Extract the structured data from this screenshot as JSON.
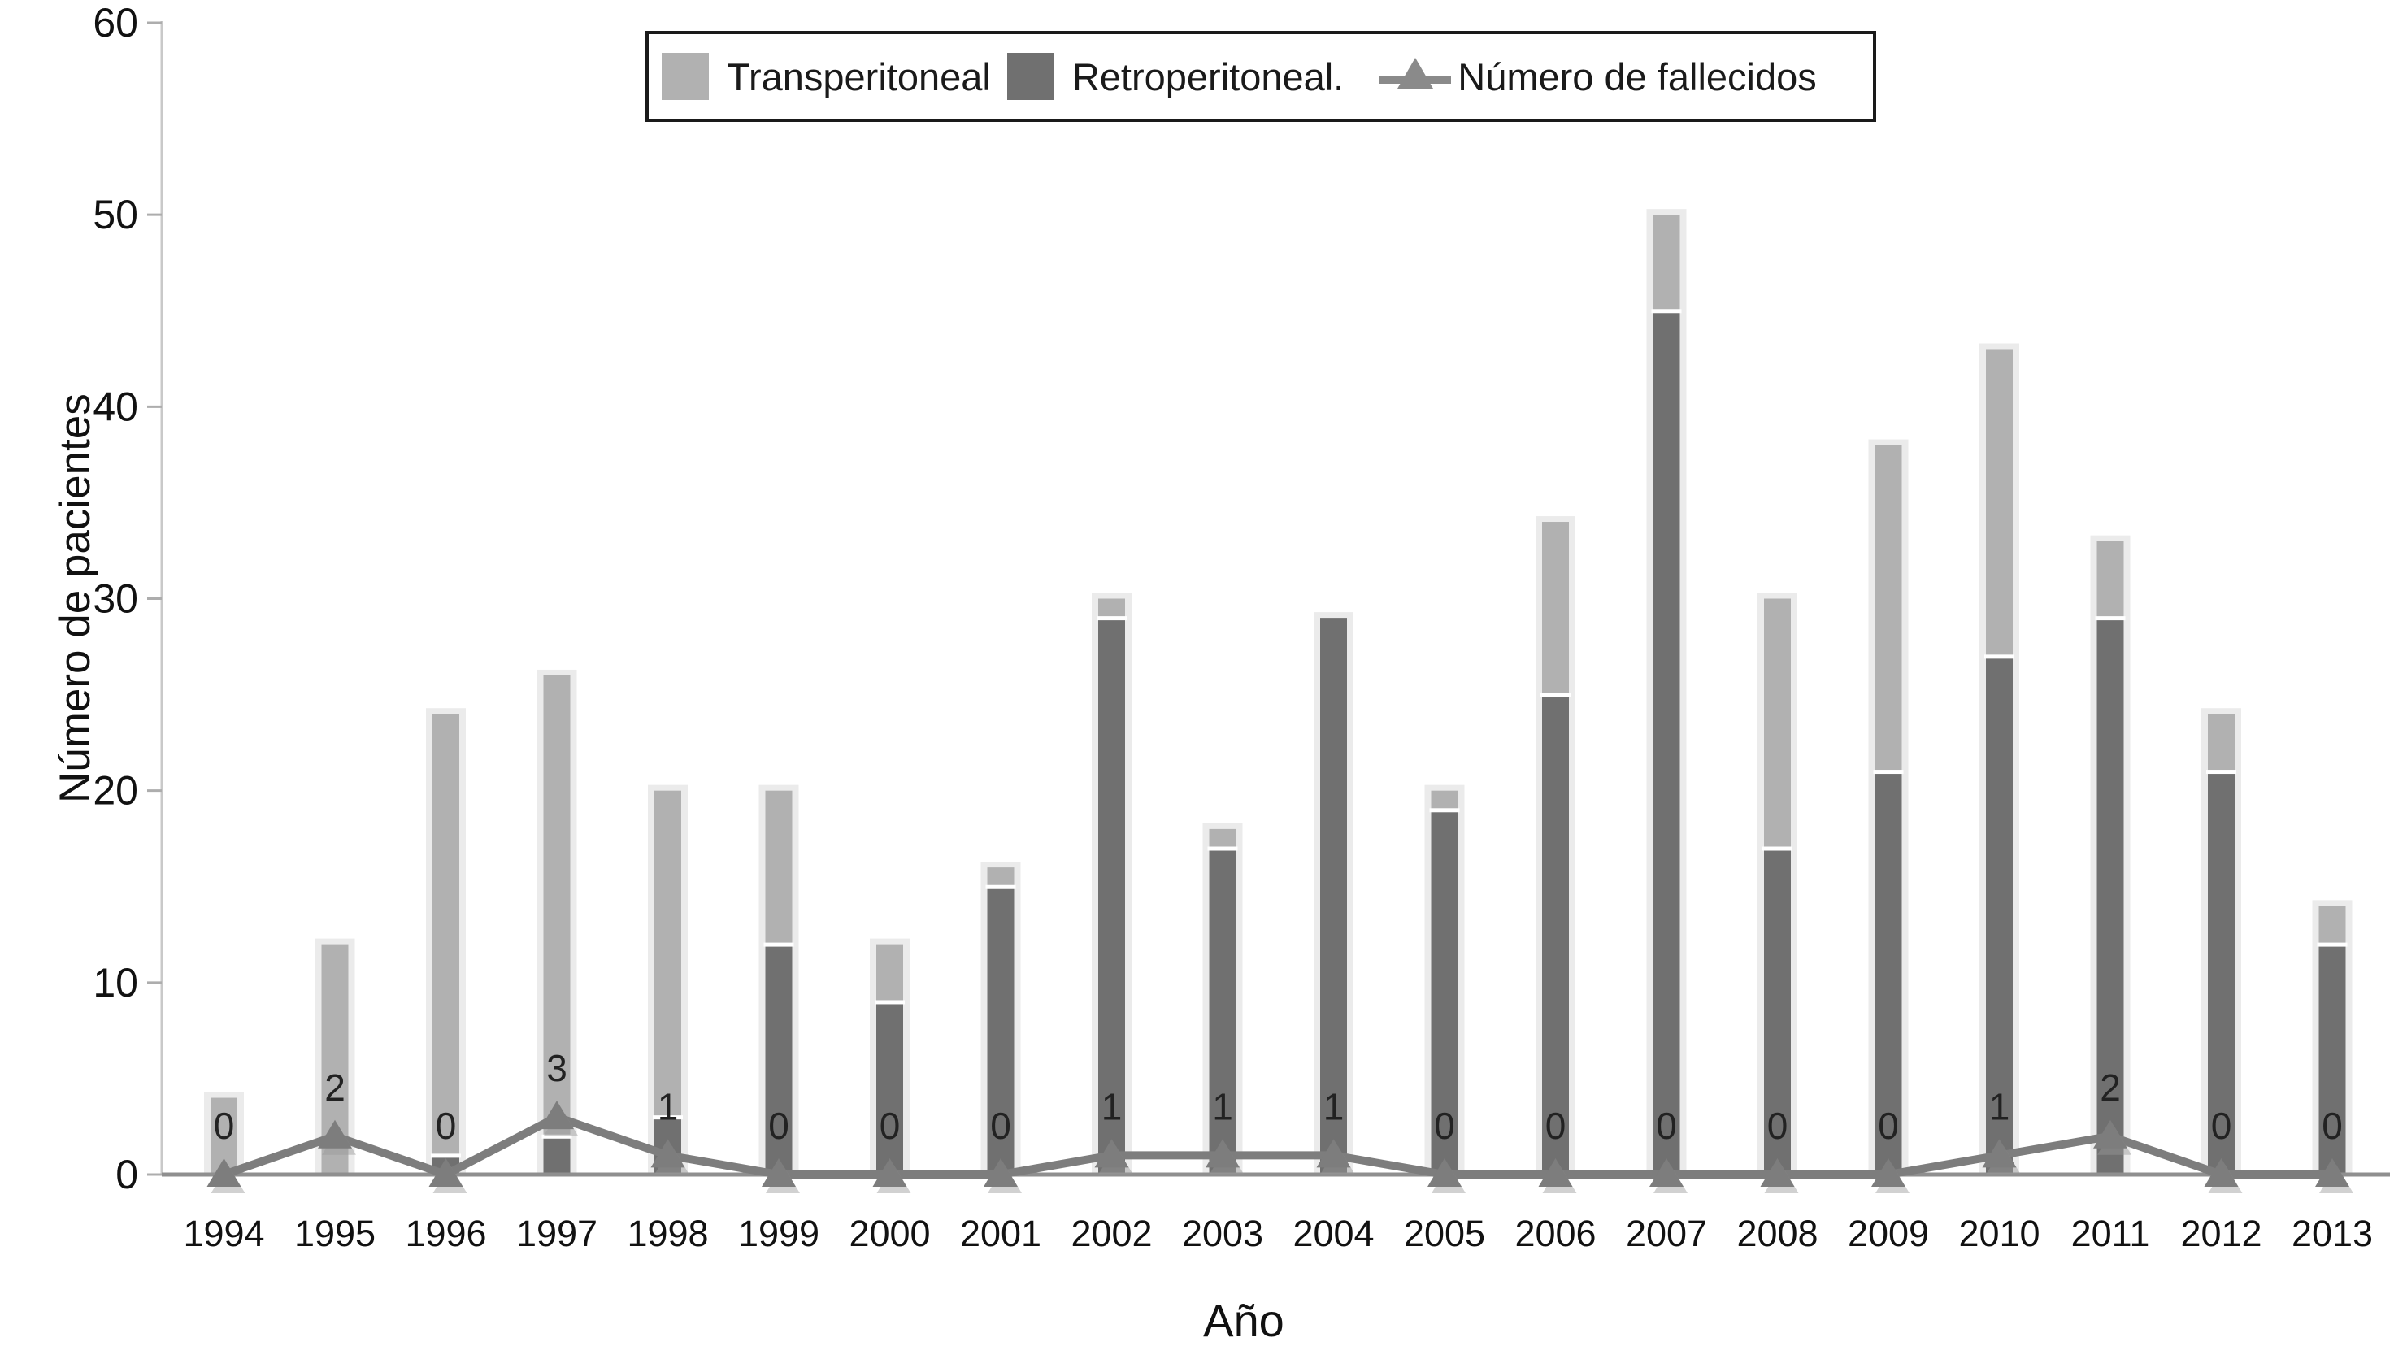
{
  "axes": {
    "x_label": "Año",
    "y_label": "Número de pacientes",
    "y_ticks": [
      0,
      10,
      20,
      30,
      40,
      50,
      60
    ]
  },
  "legend": {
    "items": [
      {
        "label": "Transperitoneal",
        "marker": "square-light-gray"
      },
      {
        "label": "Retroperitoneal.",
        "marker": "square-dark-gray"
      },
      {
        "label": "Número de fallecidos",
        "marker": "triangle-line"
      }
    ]
  },
  "colors": {
    "transperitoneal": "#b1b1b1",
    "retroperitoneal": "#707070",
    "fallecidos_line": "#7d7d7d",
    "bar_halo": "#ebebeb",
    "axis_line": "#8f8f8f",
    "yaxis_line": "#c9c9c9",
    "tick": "#adadad",
    "text": "#111111",
    "data_label": "#222222",
    "legend_border": "#1a1a1a"
  },
  "chart_data": {
    "type": "bar",
    "subtype": "stacked-bars-with-line",
    "title": "",
    "xlabel": "Año",
    "ylabel": "Número de pacientes",
    "ylim": [
      0,
      60
    ],
    "grid": false,
    "legend_position": "top-center-boxed",
    "categories": [
      "1994",
      "1995",
      "1996",
      "1997",
      "1998",
      "1999",
      "2000",
      "2001",
      "2002",
      "2003",
      "2004",
      "2005",
      "2006",
      "2007",
      "2008",
      "2009",
      "2010",
      "2011",
      "2012",
      "2013"
    ],
    "series": [
      {
        "name": "Transperitoneal",
        "type": "bar",
        "stack": "patients",
        "color": "#b1b1b1",
        "values": [
          4,
          12,
          23,
          24,
          17,
          8,
          3,
          1,
          1,
          1,
          0,
          1,
          9,
          5,
          13,
          17,
          16,
          4,
          3,
          2
        ]
      },
      {
        "name": "Retroperitoneal.",
        "type": "bar",
        "stack": "patients",
        "color": "#707070",
        "values": [
          0,
          0,
          1,
          2,
          3,
          12,
          9,
          15,
          29,
          17,
          29,
          19,
          25,
          45,
          17,
          21,
          27,
          29,
          21,
          12
        ]
      },
      {
        "name": "Número de fallecidos",
        "type": "line",
        "color": "#7d7d7d",
        "marker": "triangle-up",
        "values": [
          0,
          2,
          0,
          3,
          1,
          0,
          0,
          0,
          1,
          1,
          1,
          0,
          0,
          0,
          0,
          0,
          1,
          2,
          0,
          0
        ],
        "point_labels": [
          "0",
          "2",
          "0",
          "3",
          "1",
          "0",
          "0",
          "0",
          "1",
          "1",
          "1",
          "0",
          "0",
          "0",
          "0",
          "0",
          "1",
          "2",
          "0",
          "0"
        ]
      }
    ]
  }
}
